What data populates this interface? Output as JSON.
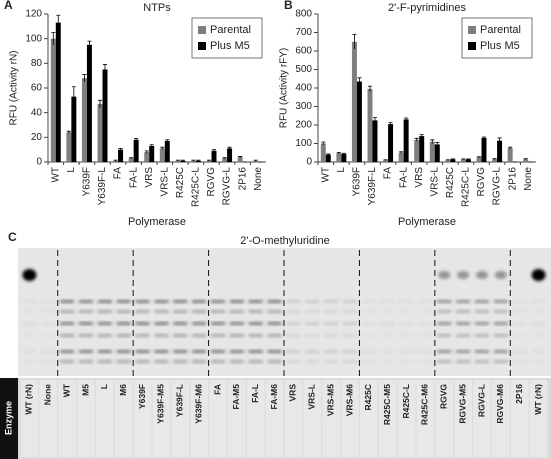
{
  "chart_data": [
    {
      "type": "bar",
      "panel": "A",
      "title": "NTPs",
      "y_label": "RFU (Activity rN)",
      "x_label": "Polymerase",
      "categories": [
        "WT",
        "L",
        "Y639F",
        "Y639F-L",
        "FA",
        "FA-L",
        "VRS",
        "VRS-L",
        "R425C",
        "R425C-L",
        "RGVG",
        "RGVG-L",
        "2P16",
        "None"
      ],
      "series": [
        {
          "name": "Parental",
          "color": "#7f7f7f",
          "values": [
            100,
            24,
            68,
            47,
            1,
            3,
            8,
            11,
            1,
            1,
            1,
            3,
            4,
            1
          ],
          "errors": [
            5,
            1,
            3,
            3,
            0.5,
            0.5,
            1,
            1,
            0.5,
            0.5,
            0.5,
            0.5,
            0.5,
            0.5
          ]
        },
        {
          "name": "Plus M5",
          "color": "#000000",
          "values": [
            113,
            53,
            95,
            75,
            10,
            18,
            13,
            17,
            1,
            1,
            9,
            11,
            0,
            0
          ],
          "errors": [
            6,
            8,
            3,
            4,
            1,
            1,
            1,
            1,
            0.5,
            0.5,
            1,
            1,
            0,
            0
          ]
        }
      ],
      "ylim": [
        0,
        120
      ],
      "yticks": [
        0,
        20,
        40,
        60,
        80,
        100,
        120
      ],
      "legend": "top-right"
    },
    {
      "type": "bar",
      "panel": "B",
      "title": "2'-F-pyrimidines",
      "y_label": "RFU (Activity rFY)",
      "x_label": "Polymerase",
      "categories": [
        "WT",
        "L",
        "Y639F",
        "Y639F-L",
        "FA",
        "FA-L",
        "VRS",
        "VRS-L",
        "R425C",
        "R425C-L",
        "RGVG",
        "RGVG-L",
        "2P16",
        "None"
      ],
      "series": [
        {
          "name": "Parental",
          "color": "#7f7f7f",
          "values": [
            100,
            48,
            650,
            395,
            10,
            50,
            120,
            110,
            10,
            15,
            25,
            15,
            75,
            15
          ],
          "errors": [
            8,
            4,
            40,
            15,
            2,
            5,
            8,
            10,
            2,
            2,
            3,
            3,
            5,
            3
          ]
        },
        {
          "name": "Plus M5",
          "color": "#000000",
          "values": [
            40,
            43,
            435,
            225,
            205,
            230,
            140,
            95,
            15,
            15,
            130,
            115,
            0,
            0
          ],
          "errors": [
            4,
            4,
            20,
            15,
            8,
            8,
            8,
            10,
            2,
            2,
            5,
            15,
            0,
            0
          ]
        }
      ],
      "ylim": [
        0,
        800
      ],
      "yticks": [
        0,
        100,
        200,
        300,
        400,
        500,
        600,
        700,
        800
      ],
      "legend": "top-right"
    }
  ],
  "gel": {
    "panel": "C",
    "title": "2'-O-methyluridine",
    "row_label": "Enzyme",
    "lanes": [
      "WT (rN)",
      "None",
      "WT",
      "M5",
      "L",
      "M6",
      "Y639F",
      "Y639F-M5",
      "Y639F-L",
      "Y639F-M6",
      "FA",
      "FA-M5",
      "FA-L",
      "FA-M6",
      "VRS",
      "VRS-L",
      "VRS-M5",
      "VRS-M6",
      "R425C",
      "R425C-M5",
      "R425C-L",
      "R425C-M6",
      "RGVG",
      "RGVG-M5",
      "RGVG-L",
      "RGVG-M6",
      "2P16",
      "WT (rN)"
    ]
  }
}
